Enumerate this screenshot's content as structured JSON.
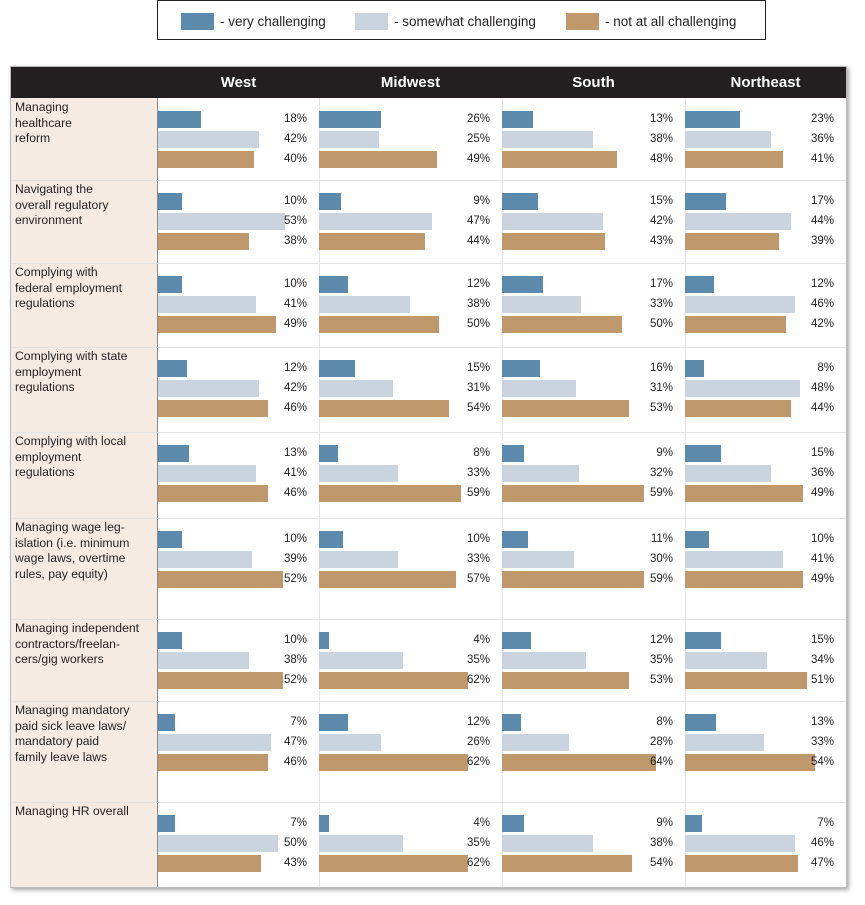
{
  "legend": [
    {
      "label": "- very challenging",
      "color": "#5b8aac"
    },
    {
      "label": "- somewhat challenging",
      "color": "#c9d4de"
    },
    {
      "label": "- not at all challenging",
      "color": "#bf996c"
    }
  ],
  "chart_data": {
    "type": "bar",
    "orientation": "horizontal",
    "title": "",
    "regions": [
      "West",
      "Midwest",
      "South",
      "Northeast"
    ],
    "series_names": [
      "very challenging",
      "somewhat challenging",
      "not at all challenging"
    ],
    "series_colors": [
      "#5b8aac",
      "#c9d4de",
      "#bf996c"
    ],
    "categories": [
      "Managing healthcare reform",
      "Navigating the overall regulatory environment",
      "Complying with federal employment regulations",
      "Complying with state employment regulations",
      "Complying with local employment regulations",
      "Managing wage leg-islation (i.e. minimum wage laws, overtime rules, pay equity)",
      "Managing independent contractors/freelan-cers/gig workers",
      "Managing mandatory paid sick leave laws/ mandatory paid family leave laws",
      "Managing HR overall"
    ],
    "category_lines": [
      [
        "Managing",
        "healthcare",
        "reform"
      ],
      [
        "Navigating the",
        "overall regulatory",
        "environment"
      ],
      [
        "Complying with",
        "federal employment",
        "regulations"
      ],
      [
        "Complying with state",
        "employment",
        "regulations"
      ],
      [
        "Complying with local",
        "employment",
        "regulations"
      ],
      [
        "Managing wage leg-",
        "islation (i.e. minimum",
        "wage laws, overtime",
        "rules, pay equity)"
      ],
      [
        "Managing independent",
        "contractors/freelan-",
        "cers/gig workers"
      ],
      [
        "Managing mandatory",
        "paid sick leave laws/",
        "mandatory paid",
        "family leave laws"
      ],
      [
        "Managing HR overall"
      ]
    ],
    "values": [
      [
        [
          18,
          42,
          40
        ],
        [
          26,
          25,
          49
        ],
        [
          13,
          38,
          48
        ],
        [
          23,
          36,
          41
        ]
      ],
      [
        [
          10,
          53,
          38
        ],
        [
          9,
          47,
          44
        ],
        [
          15,
          42,
          43
        ],
        [
          17,
          44,
          39
        ]
      ],
      [
        [
          10,
          41,
          49
        ],
        [
          12,
          38,
          50
        ],
        [
          17,
          33,
          50
        ],
        [
          12,
          46,
          42
        ]
      ],
      [
        [
          12,
          42,
          46
        ],
        [
          15,
          31,
          54
        ],
        [
          16,
          31,
          53
        ],
        [
          8,
          48,
          44
        ]
      ],
      [
        [
          13,
          41,
          46
        ],
        [
          8,
          33,
          59
        ],
        [
          9,
          32,
          59
        ],
        [
          15,
          36,
          49
        ]
      ],
      [
        [
          10,
          39,
          52
        ],
        [
          10,
          33,
          57
        ],
        [
          11,
          30,
          59
        ],
        [
          10,
          41,
          49
        ]
      ],
      [
        [
          10,
          38,
          52
        ],
        [
          4,
          35,
          62
        ],
        [
          12,
          35,
          53
        ],
        [
          15,
          34,
          51
        ]
      ],
      [
        [
          7,
          47,
          46
        ],
        [
          12,
          26,
          62
        ],
        [
          8,
          28,
          64
        ],
        [
          13,
          33,
          54
        ]
      ],
      [
        [
          7,
          50,
          43
        ],
        [
          4,
          35,
          62
        ],
        [
          9,
          38,
          54
        ],
        [
          7,
          46,
          47
        ]
      ]
    ],
    "value_suffix": "%",
    "xlim": [
      0,
      70
    ]
  }
}
